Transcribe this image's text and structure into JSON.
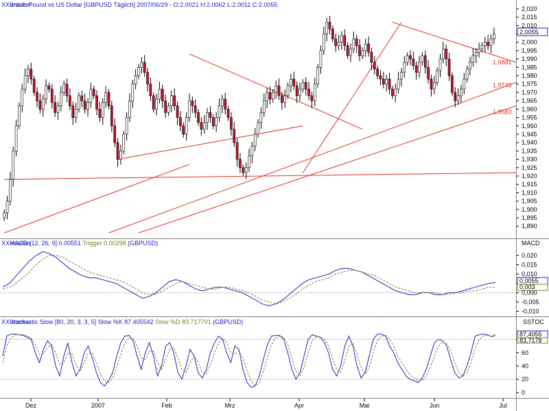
{
  "panels": {
    "price": {
      "header_icon": "XX-marker",
      "header": "British Pound vs US Dollar [GBPUSD  Täglich] 2007/06/29 - O:2.0021 H:2.0062 L:2.0011 C:2.0055",
      "y_ticks": [
        "2,020",
        "2,015",
        "2,010",
        "2,005",
        "2,000",
        "1,995",
        "1,990",
        "1,985",
        "1,980",
        "1,975",
        "1,970",
        "1,965",
        "1,960",
        "1,955",
        "1,950",
        "1,945",
        "1,940",
        "1,935",
        "1,930",
        "1,925",
        "1,920",
        "1,915",
        "1,910",
        "1,905",
        "1,900",
        "1,895",
        "1,890"
      ],
      "last_price": "2,0055",
      "trend_labels": [
        "1,9881",
        "1,9743",
        "1,9583"
      ]
    },
    "macd": {
      "header_icon": "XX-marker",
      "header_a": "MACD [12, 26, 9] 0.00551 ",
      "header_b": "Trigger 0.00298",
      "header_c": " (GBPUSD)",
      "axis_title": "MACD",
      "y_ticks": [
        "0,020",
        "0,015",
        "0,010",
        "0,005",
        "0,000",
        "-0,005",
        "-0,010"
      ],
      "last_values": [
        "0,0055",
        "0,003"
      ]
    },
    "stoch": {
      "header_icon": "XX-marker",
      "header_a": "Stochastic Slow [80, 20, 3, 3, 5] ",
      "header_b": "Slow %K 87.405542 ",
      "header_c": "Slow %D 83.717791",
      "header_d": " (GBPUSD)",
      "axis_title": "SSTOC",
      "y_ticks": [
        "80",
        "60",
        "40",
        "20",
        "0"
      ],
      "last_values": [
        "87,4055",
        "83,7178"
      ]
    }
  },
  "x_labels": [
    "Dez",
    "2007",
    "Feb",
    "Mrz",
    "Apr",
    "Mai",
    "Jun",
    "Jul"
  ],
  "colors": {
    "bull": "#ffffff",
    "bear": "#c8102e",
    "trendline": "#e03020",
    "macd": "#2020c0",
    "trigger": "#808020",
    "stoch_k": "#2020c0",
    "stoch_d": "#808020",
    "level": "#808080"
  },
  "chart_data": [
    {
      "type": "candlestick",
      "title": "British Pound vs US Dollar [GBPUSD  Täglich] 2007/06/29 - O:2.0021 H:2.0062 L:2.0011 C:2.0055",
      "x_labels": [
        "Dez",
        "2007",
        "Feb",
        "Mrz",
        "Apr",
        "Mai",
        "Jun",
        "Jul"
      ],
      "ylim": [
        1.886,
        2.022
      ],
      "close_series": [
        1.898,
        1.905,
        1.918,
        1.935,
        1.95,
        1.962,
        1.972,
        1.98,
        1.984,
        1.978,
        1.97,
        1.965,
        1.96,
        1.966,
        1.974,
        1.972,
        1.964,
        1.958,
        1.962,
        1.97,
        1.975,
        1.968,
        1.962,
        1.955,
        1.96,
        1.968,
        1.965,
        1.96,
        1.964,
        1.972,
        1.968,
        1.96,
        1.955,
        1.964,
        1.97,
        1.962,
        1.95,
        1.94,
        1.93,
        1.935,
        1.945,
        1.955,
        1.965,
        1.975,
        1.98,
        1.985,
        1.988,
        1.982,
        1.975,
        1.968,
        1.96,
        1.966,
        1.972,
        1.965,
        1.958,
        1.962,
        1.968,
        1.962,
        1.955,
        1.95,
        1.945,
        1.955,
        1.965,
        1.962,
        1.958,
        1.952,
        1.948,
        1.952,
        1.958,
        1.955,
        1.95,
        1.955,
        1.962,
        1.966,
        1.96,
        1.955,
        1.948,
        1.94,
        1.93,
        1.925,
        1.922,
        1.925,
        1.932,
        1.938,
        1.945,
        1.952,
        1.958,
        1.965,
        1.97,
        1.966,
        1.97,
        1.974,
        1.968,
        1.964,
        1.968,
        1.974,
        1.978,
        1.974,
        1.968,
        1.972,
        1.976,
        1.972,
        1.968,
        1.965,
        1.975,
        1.985,
        1.995,
        2.005,
        2.012,
        2.008,
        2.002,
        1.998,
        2.0,
        2.004,
        1.998,
        1.992,
        1.996,
        2.002,
        1.998,
        1.992,
        1.995,
        1.999,
        1.994,
        1.988,
        1.984,
        1.98,
        1.978,
        1.975,
        1.978,
        1.972,
        1.968,
        1.972,
        1.978,
        1.982,
        1.988,
        1.992,
        1.99,
        1.986,
        1.982,
        1.988,
        1.992,
        1.985,
        1.978,
        1.972,
        1.976,
        1.983,
        1.99,
        1.996,
        1.99,
        1.98,
        1.97,
        1.965,
        1.968,
        1.972,
        1.978,
        1.984,
        1.988,
        1.992,
        1.994,
        1.996,
        1.998,
        2.0,
        1.998,
        2.002,
        2.005
      ],
      "trendline_labels": [
        "1,9881",
        "1,9743",
        "1,9583"
      ]
    },
    {
      "type": "line",
      "title": "MACD [12, 26, 9] 0.00551 Trigger 0.00298 (GBPUSD)",
      "ylim": [
        -0.012,
        0.024
      ],
      "series": [
        {
          "name": "MACD [12, 26, 9] 0.00551",
          "values": [
            0.003,
            0.005,
            0.009,
            0.013,
            0.017,
            0.02,
            0.022,
            0.021,
            0.019,
            0.016,
            0.013,
            0.011,
            0.009,
            0.008,
            0.008,
            0.007,
            0.006,
            0.005,
            0.003,
            0.001,
            -0.001,
            -0.003,
            -0.002,
            0.0,
            0.003,
            0.006,
            0.007,
            0.006,
            0.004,
            0.002,
            0.001,
            0.002,
            0.003,
            0.003,
            0.002,
            0.001,
            0.0,
            -0.002,
            -0.004,
            -0.006,
            -0.007,
            -0.006,
            -0.004,
            -0.001,
            0.002,
            0.005,
            0.007,
            0.008,
            0.009,
            0.01,
            0.012,
            0.013,
            0.013,
            0.012,
            0.011,
            0.009,
            0.007,
            0.005,
            0.003,
            0.001,
            0.0,
            -0.001,
            -0.001,
            0.0,
            0.0,
            -0.001,
            -0.001,
            0.0,
            0.0,
            0.001,
            0.002,
            0.003,
            0.004,
            0.005,
            0.0055
          ]
        },
        {
          "name": "Trigger 0.00298",
          "values": [
            0.002,
            0.003,
            0.005,
            0.008,
            0.011,
            0.015,
            0.018,
            0.02,
            0.02,
            0.019,
            0.017,
            0.015,
            0.013,
            0.011,
            0.01,
            0.009,
            0.008,
            0.007,
            0.006,
            0.004,
            0.002,
            0.0,
            -0.001,
            -0.001,
            0.001,
            0.003,
            0.005,
            0.006,
            0.005,
            0.004,
            0.003,
            0.002,
            0.002,
            0.003,
            0.003,
            0.002,
            0.001,
            0.0,
            -0.002,
            -0.004,
            -0.005,
            -0.006,
            -0.005,
            -0.003,
            -0.001,
            0.002,
            0.004,
            0.006,
            0.007,
            0.008,
            0.01,
            0.011,
            0.012,
            0.012,
            0.011,
            0.01,
            0.009,
            0.007,
            0.005,
            0.003,
            0.002,
            0.001,
            0.0,
            0.0,
            0.0,
            0.0,
            -0.001,
            -0.001,
            0.0,
            0.0,
            0.001,
            0.001,
            0.002,
            0.003,
            0.003
          ]
        }
      ],
      "last_values": [
        "0,0055",
        "0,003"
      ]
    },
    {
      "type": "line",
      "title": "Stochastic Slow [80, 20, 3, 3, 5] Slow %K 87.405542 Slow %D 83.717791 (GBPUSD)",
      "ylim": [
        -5,
        100
      ],
      "levels": [
        80,
        20
      ],
      "series": [
        {
          "name": "Slow %K 87.405542",
          "values": [
            55,
            85,
            88,
            88,
            87,
            86,
            83,
            80,
            60,
            45,
            65,
            78,
            70,
            40,
            25,
            55,
            75,
            45,
            25,
            35,
            60,
            70,
            52,
            30,
            15,
            10,
            18,
            30,
            55,
            75,
            85,
            86,
            78,
            55,
            35,
            60,
            75,
            55,
            25,
            40,
            70,
            75,
            60,
            30,
            20,
            40,
            65,
            55,
            30,
            22,
            35,
            60,
            75,
            85,
            80,
            60,
            45,
            70,
            65,
            35,
            15,
            8,
            10,
            25,
            50,
            72,
            85,
            86,
            86,
            80,
            60,
            35,
            20,
            30,
            55,
            80,
            87,
            85,
            83,
            75,
            60,
            35,
            25,
            40,
            70,
            85,
            70,
            40,
            22,
            30,
            55,
            80,
            88,
            88,
            85,
            70,
            60,
            45,
            35,
            25,
            20,
            18,
            15,
            22,
            35,
            55,
            75,
            80,
            78,
            70,
            50,
            30,
            22,
            25,
            40,
            60,
            85,
            87,
            88,
            87,
            84,
            87
          ]
        },
        {
          "name": "Slow %D 83.717791",
          "values": [
            45,
            70,
            82,
            87,
            87,
            87,
            85,
            82,
            72,
            58,
            58,
            68,
            72,
            60,
            42,
            45,
            60,
            58,
            42,
            32,
            45,
            60,
            60,
            45,
            28,
            18,
            15,
            22,
            38,
            58,
            75,
            82,
            82,
            70,
            52,
            50,
            62,
            62,
            45,
            35,
            50,
            65,
            68,
            52,
            35,
            30,
            45,
            55,
            45,
            30,
            28,
            42,
            60,
            75,
            82,
            75,
            60,
            58,
            62,
            52,
            32,
            18,
            10,
            15,
            32,
            52,
            72,
            82,
            85,
            83,
            72,
            52,
            32,
            25,
            38,
            60,
            78,
            84,
            84,
            80,
            70,
            52,
            35,
            30,
            48,
            70,
            75,
            58,
            38,
            28,
            38,
            60,
            78,
            85,
            86,
            80,
            70,
            55,
            45,
            35,
            27,
            22,
            18,
            18,
            25,
            38,
            55,
            70,
            76,
            74,
            62,
            45,
            30,
            25,
            30,
            45,
            65,
            80,
            85,
            86,
            85,
            84
          ]
        }
      ],
      "last_values": [
        "87,4055",
        "83,7178"
      ]
    }
  ]
}
